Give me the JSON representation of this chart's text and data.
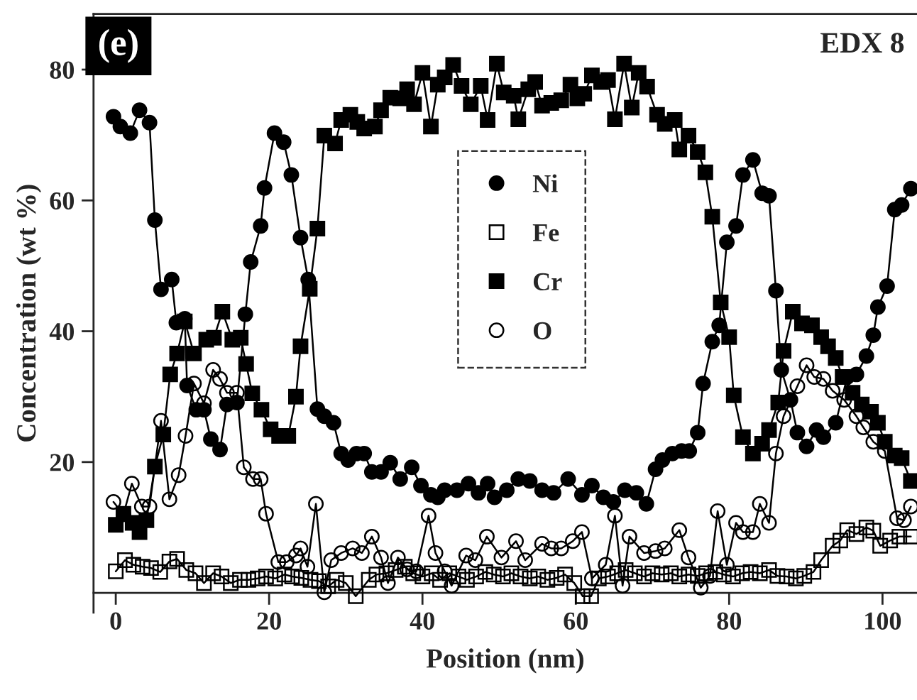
{
  "chart_data": {
    "type": "line",
    "xlabel": "Position (nm)",
    "ylabel": "Concentration (wt %)",
    "annotations": [
      "(e)",
      "EDX 8"
    ],
    "xlim": [
      -2.9,
      104.5
    ],
    "ylim": [
      -3,
      88.5
    ],
    "xticks": [
      0,
      20,
      40,
      60,
      80,
      100
    ],
    "yticks": [
      20,
      40,
      60,
      80
    ],
    "grid": false,
    "legend": "center",
    "series": [
      {
        "name": "Ni",
        "color": "#000000",
        "marker": "circle",
        "x": [
          -0.3,
          0.6,
          1.9,
          3.1,
          4.4,
          5.1,
          5.9,
          7.3,
          7.9,
          9,
          9.3,
          10.5,
          11.5,
          12.4,
          13.6,
          14.5,
          15.8,
          16.9,
          17.6,
          18.9,
          19.4,
          20.7,
          21.9,
          22.9,
          24.1,
          25.1,
          26.3,
          27.2,
          28.4,
          29.4,
          30.3,
          31.4,
          32.4,
          33.4,
          34.6,
          35.8,
          37.1,
          38.6,
          39.8,
          41.1,
          42,
          42.9,
          44.5,
          46,
          47.3,
          48.5,
          49.4,
          51,
          52.5,
          54,
          55.6,
          57.1,
          59,
          60.8,
          62.1,
          63.6,
          64.9,
          66.4,
          67.9,
          69.2,
          70.4,
          71.3,
          72.6,
          73.8,
          74.8,
          75.9,
          76.6,
          77.8,
          78.7,
          79.7,
          80.9,
          81.8,
          83.1,
          84.3,
          85.2,
          86.1,
          86.8,
          88,
          88.9,
          90.1,
          91.4,
          92.3,
          93.9,
          95.4,
          96.6,
          97.9,
          98.8,
          99.4,
          100.6,
          101.6,
          102.5,
          103.7
        ],
        "values": [
          72.8,
          71.3,
          70.3,
          73.8,
          71.9,
          57,
          46.4,
          47.9,
          41.3,
          41.9,
          31.7,
          28,
          28,
          23.5,
          21.9,
          28.8,
          29.1,
          42.6,
          50.6,
          56.1,
          61.9,
          70.3,
          68.9,
          63.9,
          54.3,
          47.9,
          28.1,
          27,
          26,
          21.3,
          20.3,
          21.3,
          21.3,
          18.5,
          18.5,
          19.9,
          17.4,
          19.2,
          16.4,
          15,
          14.6,
          15.7,
          15.7,
          16.7,
          15.3,
          16.7,
          14.6,
          15.7,
          17.4,
          17.1,
          15.7,
          15.3,
          17.4,
          15,
          16.4,
          14.6,
          13.9,
          15.7,
          15.3,
          13.6,
          18.9,
          20.3,
          21.3,
          21.7,
          21.7,
          24.5,
          32,
          38.4,
          40.9,
          53.6,
          56.1,
          63.9,
          66.2,
          61.1,
          60.7,
          46.2,
          34.1,
          29.5,
          24.5,
          22.4,
          24.9,
          23.8,
          26,
          33,
          33.4,
          36.2,
          39.4,
          43.7,
          46.9,
          58.6,
          59.3,
          61.8
        ]
      },
      {
        "name": "Fe",
        "color": "#000000",
        "marker": "square-open",
        "x": [
          0,
          1.2,
          2.3,
          3.5,
          4.6,
          5.8,
          7,
          8,
          9.2,
          10.4,
          11.5,
          12.7,
          13.8,
          15,
          16.2,
          17.3,
          18.5,
          19.6,
          20.8,
          22,
          23,
          24.2,
          25.4,
          26.5,
          27.7,
          28.8,
          30,
          31.3,
          33,
          34,
          35.3,
          36.5,
          37.7,
          38.8,
          40,
          41.2,
          42.3,
          43.5,
          44.7,
          45.8,
          47,
          48.2,
          49.3,
          50.5,
          51.6,
          52.8,
          54,
          55.1,
          56.3,
          57.5,
          58.6,
          59.8,
          60.9,
          62,
          63,
          64.2,
          65.4,
          66.5,
          67.7,
          68.9,
          70,
          71.2,
          72.4,
          73.5,
          74.7,
          75.9,
          77,
          78.2,
          79.3,
          80.5,
          81.7,
          82.8,
          84,
          85.2,
          86.3,
          87.5,
          88.7,
          89.8,
          91,
          92,
          93.5,
          94.5,
          95.4,
          96.6,
          97.9,
          98.8,
          99.7,
          101,
          102.2,
          103.7
        ],
        "values": [
          3.3,
          5,
          4.3,
          4,
          3.8,
          3.2,
          4.8,
          5.2,
          3.5,
          3,
          1.5,
          3,
          2.5,
          1.5,
          2,
          2,
          2.2,
          2.5,
          2.2,
          2.8,
          2.5,
          2.3,
          2,
          1.8,
          1,
          2,
          1.5,
          -0.5,
          2,
          2.8,
          3,
          3.5,
          4,
          3,
          2.5,
          3,
          2,
          3,
          2.5,
          2,
          2.5,
          3.2,
          2.8,
          2.5,
          3,
          2.5,
          2.2,
          2.5,
          2,
          2.3,
          2.8,
          1.5,
          -0.5,
          -0.5,
          2.2,
          2.5,
          3,
          3.5,
          3,
          2.5,
          3,
          2.8,
          3,
          2.5,
          2.8,
          2.6,
          3,
          3.2,
          2.8,
          2.5,
          3,
          3.2,
          3,
          3.5,
          2.6,
          2.5,
          2.2,
          2.6,
          3.2,
          5,
          7.2,
          8,
          9.6,
          9,
          10,
          9.5,
          7.2,
          8,
          8.6,
          8.6
        ]
      },
      {
        "name": "Cr",
        "color": "#000000",
        "marker": "square",
        "x": [
          0,
          1,
          2.2,
          3.1,
          4,
          5.1,
          6.2,
          7.1,
          8,
          9,
          10.2,
          11.8,
          12.8,
          13.9,
          15.2,
          16.3,
          17,
          17.8,
          19,
          20.2,
          21.3,
          22.5,
          23.5,
          24.1,
          25.3,
          26.3,
          27.2,
          28.6,
          29.4,
          30.6,
          31.5,
          32.4,
          33.8,
          34.6,
          35.8,
          37.1,
          38,
          38.9,
          40,
          41.1,
          42,
          42.9,
          44,
          45.1,
          46.3,
          47.6,
          48.5,
          49.7,
          50.6,
          51.9,
          52.5,
          53.8,
          54.7,
          55.6,
          56.8,
          58.1,
          59.3,
          60.2,
          61.1,
          62.1,
          63.3,
          64.2,
          65.1,
          66.3,
          67.3,
          68.2,
          69.3,
          70.6,
          71.6,
          72.9,
          73.5,
          74.7,
          75.9,
          76.9,
          77.8,
          78.9,
          80,
          80.6,
          81.8,
          83.1,
          84.3,
          85.2,
          86.4,
          87.1,
          88.3,
          89.5,
          90.8,
          92,
          92.9,
          93.9,
          94.8,
          96.1,
          97.3,
          98.5,
          99.4,
          100.3,
          101.6,
          102.5,
          103.7
        ],
        "values": [
          10.4,
          12.1,
          10.7,
          9.3,
          11.1,
          19.3,
          24.2,
          33.4,
          36.6,
          41.5,
          36.6,
          38.7,
          39,
          43,
          38.7,
          39,
          35,
          30.5,
          28,
          25,
          24,
          24,
          30,
          37.7,
          46.5,
          55.7,
          69.9,
          68.7,
          72.3,
          73.1,
          72,
          71,
          71.3,
          73.8,
          75.7,
          75.6,
          77,
          74.7,
          79.5,
          71.3,
          77.7,
          78.8,
          80.7,
          77.5,
          74.7,
          77.5,
          72.3,
          80.9,
          76.5,
          76,
          72.4,
          77,
          78.1,
          74.5,
          74.9,
          75.3,
          77.7,
          75.6,
          76.3,
          79.1,
          78.1,
          78.4,
          72.4,
          80.9,
          74.2,
          79.5,
          77.4,
          73.1,
          71.7,
          72.3,
          67.8,
          69.9,
          67.4,
          64.3,
          57.5,
          44.4,
          39.1,
          30.2,
          23.8,
          21.3,
          22.8,
          24.9,
          29.1,
          37,
          43,
          41.2,
          40.9,
          39.1,
          37.7,
          35.9,
          33,
          30.6,
          28.8,
          27.7,
          26,
          23.1,
          21,
          20.6,
          17.1
        ]
      },
      {
        "name": "O",
        "color": "#000000",
        "marker": "circle-open",
        "x": [
          -0.3,
          1,
          2.1,
          3.4,
          4.4,
          5.9,
          7,
          8.2,
          9.1,
          10.2,
          11.5,
          12.7,
          13.6,
          14.5,
          15.8,
          16.7,
          17.9,
          18.9,
          19.6,
          21.2,
          22.3,
          23.5,
          24.1,
          25,
          26.1,
          27.2,
          28.1,
          29.4,
          30.9,
          32.1,
          33.4,
          34.6,
          35.5,
          36.8,
          38,
          39.2,
          40.8,
          41.7,
          42.9,
          43.8,
          45.7,
          46.9,
          48.4,
          50.3,
          52.2,
          53.4,
          55.6,
          56.8,
          58.1,
          59.6,
          60.8,
          62.1,
          63.9,
          65.1,
          66.1,
          67,
          68.9,
          70.4,
          71.6,
          73.5,
          74.7,
          76.3,
          77.5,
          78.5,
          79.7,
          80.9,
          81.8,
          83.1,
          84,
          85.2,
          86.1,
          87.1,
          88.9,
          90.1,
          91.1,
          92.3,
          93.5,
          95,
          96.6,
          97.5,
          98.8,
          100.3,
          101.9,
          102.8,
          103.7
        ],
        "values": [
          13.9,
          12,
          16.7,
          13.2,
          13.2,
          26.3,
          14.3,
          18,
          24,
          32,
          29,
          34.1,
          32.7,
          30.6,
          30.6,
          19.2,
          17.4,
          17.4,
          12.1,
          4.7,
          4.7,
          5.7,
          6.8,
          4,
          13.6,
          0.1,
          5,
          6.1,
          6.8,
          6.1,
          8.6,
          5.4,
          1.5,
          5.4,
          3.6,
          3.3,
          11.8,
          6.1,
          3.3,
          1.1,
          5.7,
          5,
          8.6,
          5.4,
          7.9,
          5,
          7.5,
          6.8,
          6.8,
          7.9,
          9.3,
          2.2,
          4.3,
          11.8,
          1.1,
          8.6,
          6.1,
          6.4,
          6.8,
          9.6,
          5.4,
          0.8,
          2.6,
          12.5,
          4.3,
          10.7,
          9.3,
          9.3,
          13.6,
          10.7,
          21.3,
          27,
          31.6,
          34.8,
          33,
          32.7,
          30.9,
          29.5,
          27,
          25.3,
          23.1,
          21.7,
          11.4,
          11.1,
          13.2
        ]
      }
    ]
  }
}
